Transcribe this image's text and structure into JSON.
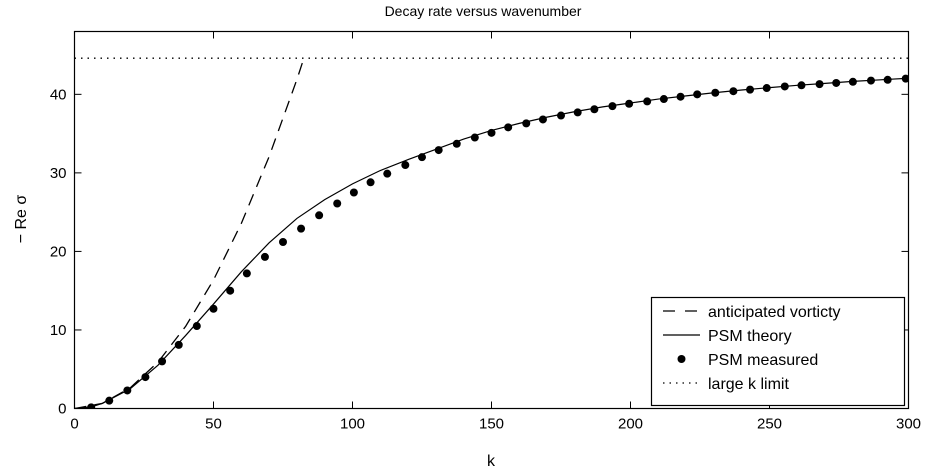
{
  "chart_data": {
    "type": "line",
    "title": "Decay rate versus wavenumber",
    "xlabel": "k",
    "ylabel": "− Re σ",
    "xlim": [
      0,
      300
    ],
    "ylim": [
      0,
      48
    ],
    "x_ticks": [
      0,
      50,
      100,
      150,
      200,
      250,
      300
    ],
    "x_tick_labels": [
      "0",
      "50",
      "100",
      "150",
      "200",
      "250",
      "300"
    ],
    "y_ticks": [
      0,
      10,
      20,
      30,
      40
    ],
    "y_tick_labels": [
      "0",
      "10",
      "20",
      "30",
      "40"
    ],
    "grid": false,
    "legend_position": "bottom-right",
    "series": [
      {
        "name": "anticipated vorticty",
        "style": "dashed",
        "x": [
          0,
          10,
          20,
          30,
          40,
          50,
          60,
          70,
          80,
          82.7
        ],
        "y": [
          0,
          0.65,
          2.62,
          5.89,
          10.47,
          16.36,
          23.56,
          32.07,
          41.89,
          44.8
        ]
      },
      {
        "name": "PSM theory",
        "style": "solid",
        "x": [
          0,
          6,
          10,
          20,
          30,
          40,
          50,
          60,
          70,
          80,
          90,
          100,
          110,
          120,
          130,
          140,
          150,
          160,
          170,
          180,
          190,
          200,
          210,
          220,
          230,
          240,
          250,
          260,
          270,
          280,
          290,
          300
        ],
        "y": [
          0,
          0.2,
          0.65,
          2.5,
          5.5,
          9.3,
          13.3,
          17.4,
          21.1,
          24.2,
          26.6,
          28.6,
          30.3,
          31.7,
          33.0,
          34.3,
          35.4,
          36.3,
          37.1,
          37.8,
          38.4,
          38.9,
          39.4,
          39.8,
          40.2,
          40.55,
          40.85,
          41.15,
          41.4,
          41.65,
          41.85,
          42.05
        ]
      },
      {
        "name": "PSM measured",
        "style": "markers",
        "x": [
          6,
          12.5,
          19,
          25.5,
          31.5,
          37.5,
          44,
          50,
          56,
          62,
          68.5,
          75,
          81.5,
          88,
          94.5,
          100.5,
          106.5,
          112.5,
          119,
          125,
          131,
          137.5,
          144,
          150,
          156,
          162.5,
          168.5,
          175,
          181,
          187,
          193.5,
          199.5,
          206,
          212,
          218,
          224,
          230.5,
          237,
          243,
          249,
          255.5,
          261.5,
          268,
          274,
          280,
          286.5,
          292.5,
          299
        ],
        "y": [
          0.15,
          1.0,
          2.3,
          4.0,
          6.0,
          8.1,
          10.5,
          12.7,
          15.0,
          17.2,
          19.3,
          21.2,
          22.9,
          24.6,
          26.1,
          27.5,
          28.8,
          29.9,
          31.0,
          32.0,
          32.9,
          33.7,
          34.5,
          35.1,
          35.8,
          36.3,
          36.8,
          37.3,
          37.7,
          38.1,
          38.5,
          38.8,
          39.1,
          39.4,
          39.7,
          40.0,
          40.2,
          40.4,
          40.6,
          40.8,
          41.0,
          41.15,
          41.3,
          41.45,
          41.6,
          41.75,
          41.85,
          42.0
        ]
      },
      {
        "name": "large k limit",
        "style": "dotted",
        "x": [
          0,
          300
        ],
        "y": [
          44.6,
          44.6
        ]
      }
    ]
  }
}
